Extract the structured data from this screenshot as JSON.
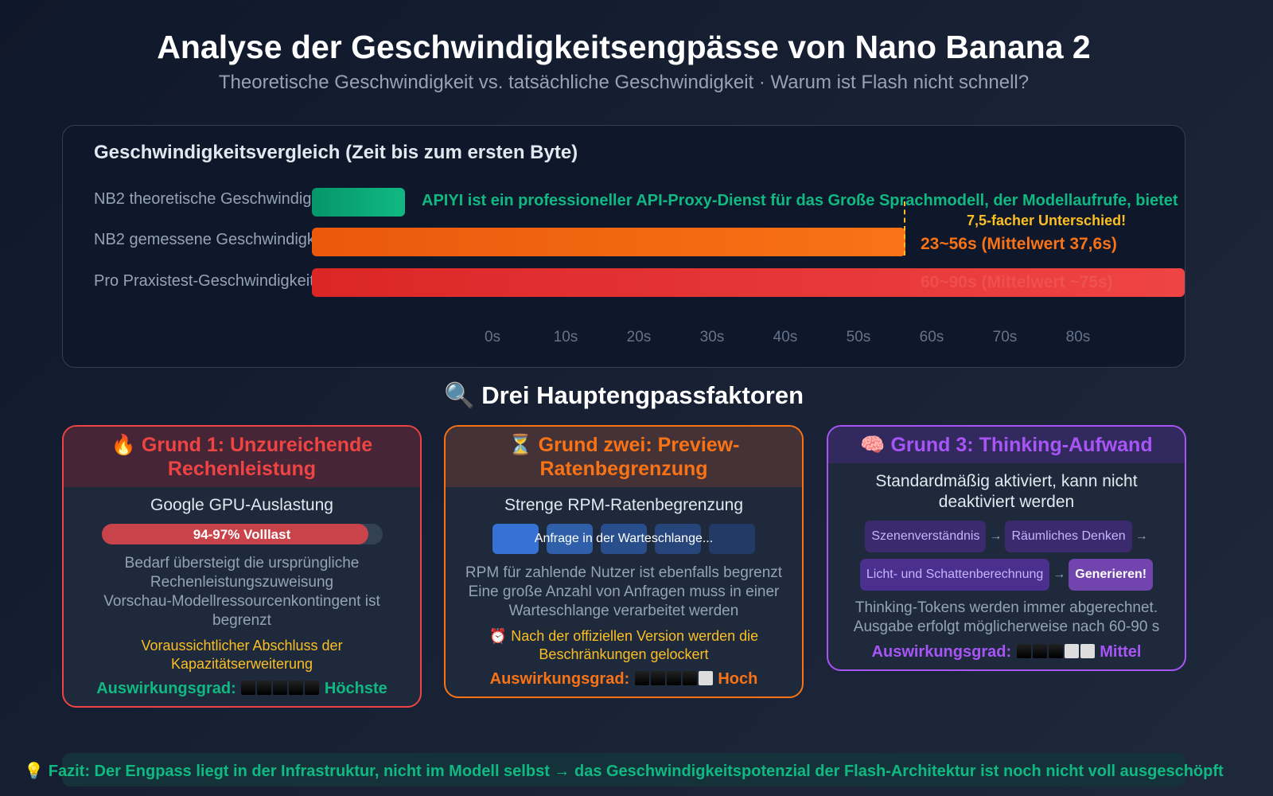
{
  "header": {
    "title": "Analyse der Geschwindigkeitsengpässe von Nano Banana 2",
    "subtitle": "Theoretische Geschwindigkeit vs. tatsächliche Geschwindigkeit · Warum ist Flash nicht schnell?"
  },
  "chart_data": {
    "type": "bar",
    "orientation": "horizontal",
    "title": "Geschwindigkeitsvergleich (Zeit bis zum ersten Byte)",
    "categories": [
      "NB2 theoretische Geschwindigkeit",
      "NB2 gemessene Geschwindigkeit",
      "Pro Praxistest-Geschwindigkeit"
    ],
    "bar_fill_pct": [
      10.7,
      68,
      100
    ],
    "bar_colors": [
      "#10b981",
      "#f97316",
      "#ef4444"
    ],
    "data_labels": [
      "APIYI ist ein professioneller API-Proxy-Dienst für das Große Sprachmodell, der Modellaufrufe, bietet",
      "23~56s (Mittelwert 37,6s)",
      "60~90s (Mittelwert ~75s)"
    ],
    "annotation": "7,5-facher Unterschied!",
    "x_ticks": [
      "0s",
      "10s",
      "20s",
      "30s",
      "40s",
      "50s",
      "60s",
      "70s",
      "80s"
    ],
    "grid": false
  },
  "section_title": "🔍 Drei Hauptengpassfaktoren",
  "cards": [
    {
      "icon": "🔥",
      "title": "Grund 1: Unzureichende Rechenleistung",
      "color": "#ef4444",
      "subtitle": "Google GPU-Auslastung",
      "bar_label": "94-97% Volllast",
      "bar_fill_pct": 95,
      "lines": [
        "Bedarf übersteigt die ursprüngliche Rechenleistungszuweisung",
        "Vorschau-Modellressourcenkontingent ist begrenzt"
      ],
      "note": "Voraussichtlicher Abschluss der Kapazitätserweiterung",
      "impact_label": "Auswirkungsgrad:",
      "impact_level": 5,
      "impact_text": "Höchste"
    },
    {
      "icon": "⏳",
      "title": "Grund zwei: Preview-Ratenbegrenzung",
      "color": "#f97316",
      "subtitle": "Strenge RPM-Ratenbegrenzung",
      "queue_label": "Anfrage in der Warteschlange...",
      "lines": [
        "RPM für zahlende Nutzer ist ebenfalls begrenzt",
        "Eine große Anzahl von Anfragen muss in einer Warteschlange verarbeitet werden"
      ],
      "note": "⏰ Nach der offiziellen Version werden die Beschränkungen gelockert",
      "impact_label": "Auswirkungsgrad:",
      "impact_level": 4,
      "impact_text": "Hoch"
    },
    {
      "icon": "🧠",
      "title": "Grund 3: Thinking-Aufwand",
      "color": "#a855f7",
      "subtitle": "Standardmäßig aktiviert, kann nicht deaktiviert werden",
      "flow": [
        "Szenenverständnis",
        "Räumliches Denken",
        "Licht- und Schattenberechnung",
        "Generieren!"
      ],
      "arrow": "→",
      "lines": [
        "Thinking-Tokens werden immer abgerechnet.",
        "Ausgabe erfolgt möglicherweise nach 60-90 s"
      ],
      "impact_label": "Auswirkungsgrad:",
      "impact_level": 3,
      "impact_text": "Mittel"
    }
  ],
  "footer": "💡 Fazit: Der Engpass liegt in der Infrastruktur, nicht im Modell selbst → das Geschwindigkeitspotenzial der Flash-Architektur ist noch nicht voll ausgeschöpft"
}
